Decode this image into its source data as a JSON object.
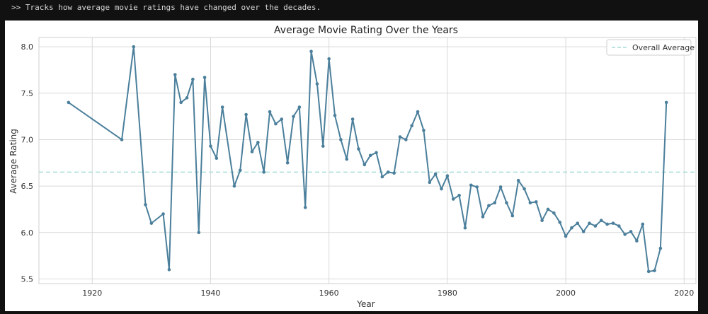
{
  "caption": ">> Tracks how average movie ratings have changed over the decades.",
  "colors": {
    "line": "#4b7f9b",
    "average": "#a8dcd9",
    "grid": "#d9d9d9",
    "border": "#cfcfcf"
  },
  "chart_data": {
    "type": "line",
    "title": "Average Movie Rating Over the Years",
    "xlabel": "Year",
    "ylabel": "Average Rating",
    "xlim": [
      1911,
      2022
    ],
    "ylim": [
      5.45,
      8.1
    ],
    "xticks": [
      1920,
      1940,
      1960,
      1980,
      2000,
      2020
    ],
    "yticks": [
      5.5,
      6.0,
      6.5,
      7.0,
      7.5,
      8.0
    ],
    "grid": true,
    "legend_position": "top-right",
    "overall_average": {
      "name": "Overall Average",
      "value": 6.65
    },
    "series": [
      {
        "x": [
          1916,
          1925,
          1927,
          1929,
          1930,
          1932,
          1933,
          1934,
          1935,
          1936,
          1937,
          1938,
          1939,
          1940,
          1941,
          1942,
          1944,
          1945,
          1946,
          1947,
          1948,
          1949,
          1950,
          1951,
          1952,
          1953,
          1954,
          1955,
          1956,
          1957,
          1958,
          1959,
          1960,
          1961,
          1962,
          1963,
          1964,
          1965,
          1966,
          1967,
          1968,
          1969,
          1970,
          1971,
          1972,
          1973,
          1974,
          1975,
          1976,
          1977,
          1978,
          1979,
          1980,
          1981,
          1982,
          1983,
          1984,
          1985,
          1986,
          1987,
          1988,
          1989,
          1990,
          1991,
          1992,
          1993,
          1994,
          1995,
          1996,
          1997,
          1998,
          1999,
          2000,
          2001,
          2002,
          2003,
          2004,
          2005,
          2006,
          2007,
          2008,
          2009,
          2010,
          2011,
          2012,
          2013,
          2014,
          2015,
          2016,
          2017
        ],
        "y": [
          7.4,
          7.0,
          8.0,
          6.3,
          6.1,
          6.2,
          5.6,
          7.7,
          7.4,
          7.45,
          7.65,
          6.0,
          7.67,
          6.93,
          6.8,
          7.35,
          6.5,
          6.67,
          7.27,
          6.87,
          6.97,
          6.65,
          7.3,
          7.17,
          7.22,
          6.75,
          7.25,
          7.35,
          6.27,
          7.95,
          7.6,
          6.93,
          7.87,
          7.26,
          7.0,
          6.79,
          7.22,
          6.9,
          6.73,
          6.83,
          6.86,
          6.6,
          6.65,
          6.64,
          7.03,
          7.0,
          7.15,
          7.3,
          7.1,
          6.54,
          6.63,
          6.47,
          6.61,
          6.36,
          6.4,
          6.05,
          6.51,
          6.49,
          6.17,
          6.29,
          6.32,
          6.49,
          6.32,
          6.18,
          6.56,
          6.47,
          6.32,
          6.33,
          6.13,
          6.25,
          6.21,
          6.11,
          5.96,
          6.05,
          6.1,
          6.01,
          6.1,
          6.07,
          6.13,
          6.09,
          6.1,
          6.07,
          5.98,
          6.01,
          5.91,
          6.09,
          5.58,
          5.59,
          5.83,
          7.4
        ]
      }
    ]
  }
}
